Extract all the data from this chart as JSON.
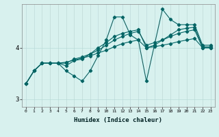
{
  "xlabel": "Humidex (Indice chaleur)",
  "bg_color": "#d8f0ee",
  "grid_color": "#b8dcd8",
  "line_color": "#006666",
  "marker": "D",
  "markersize": 2.2,
  "linewidth": 0.8,
  "xlim": [
    -0.5,
    23.5
  ],
  "ylim": [
    2.85,
    4.85
  ],
  "yticks": [
    3,
    4
  ],
  "xticks": [
    0,
    1,
    2,
    3,
    4,
    5,
    6,
    7,
    8,
    9,
    10,
    11,
    12,
    13,
    14,
    15,
    16,
    17,
    18,
    19,
    20,
    21,
    22,
    23
  ],
  "series": [
    [
      3.3,
      3.55,
      3.7,
      3.7,
      3.7,
      3.55,
      3.45,
      3.35,
      3.55,
      3.85,
      4.15,
      4.6,
      4.6,
      4.25,
      4.15,
      3.35,
      4.05,
      4.75,
      4.55,
      4.45,
      4.45,
      4.45,
      4.05,
      4.05
    ],
    [
      3.3,
      3.55,
      3.7,
      3.7,
      3.7,
      3.65,
      3.75,
      3.78,
      3.88,
      4.0,
      4.1,
      4.22,
      4.28,
      4.32,
      4.35,
      4.0,
      4.05,
      4.15,
      4.25,
      4.35,
      4.38,
      4.4,
      4.02,
      4.02
    ],
    [
      3.3,
      3.55,
      3.7,
      3.7,
      3.7,
      3.7,
      3.78,
      3.82,
      3.88,
      3.95,
      4.05,
      4.15,
      4.22,
      4.28,
      4.32,
      4.05,
      4.1,
      4.15,
      4.22,
      4.28,
      4.32,
      4.35,
      4.0,
      4.0
    ],
    [
      3.3,
      3.55,
      3.7,
      3.7,
      3.7,
      3.72,
      3.76,
      3.8,
      3.84,
      3.9,
      3.95,
      4.02,
      4.08,
      4.12,
      4.15,
      4.0,
      4.02,
      4.05,
      4.08,
      4.12,
      4.15,
      4.18,
      4.0,
      4.0
    ]
  ]
}
